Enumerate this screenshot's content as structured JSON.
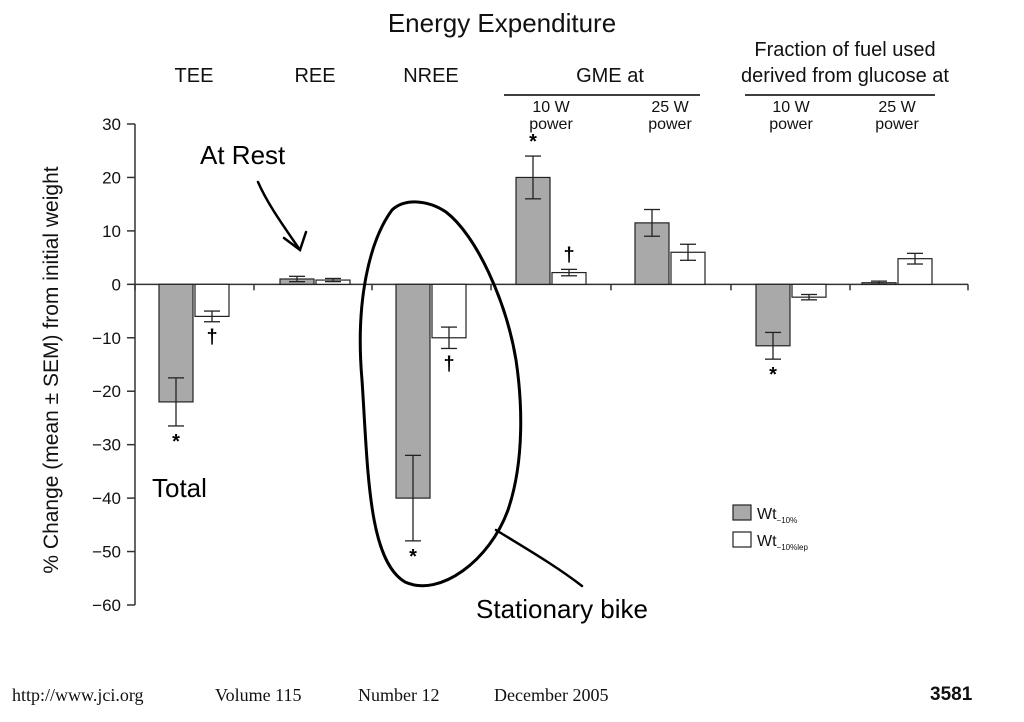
{
  "chart_data": {
    "type": "bar",
    "title": "Energy Expenditure",
    "ylabel": "% Change (mean ± SEM) from initial weight",
    "ylim": [
      -60,
      30
    ],
    "yticks": [
      30,
      20,
      10,
      0,
      -10,
      -20,
      -30,
      -40,
      -50,
      -60
    ],
    "categories": [
      "TEE",
      "REE",
      "NREE",
      "10 W power",
      "25 W power",
      "10 W power",
      "25 W power"
    ],
    "groups": [
      {
        "label": "GME at",
        "members": [
          3,
          4
        ]
      },
      {
        "label": "Fraction of fuel used derived from glucose at",
        "lines": [
          "Fraction of fuel used",
          "derived from glucose at"
        ],
        "members": [
          5,
          6
        ]
      }
    ],
    "category_labels": [
      {
        "lines": [
          "TEE"
        ]
      },
      {
        "lines": [
          "REE"
        ]
      },
      {
        "lines": [
          "NREE"
        ]
      },
      {
        "lines": [
          "10 W",
          "power"
        ]
      },
      {
        "lines": [
          "25 W",
          "power"
        ]
      },
      {
        "lines": [
          "10 W",
          "power"
        ]
      },
      {
        "lines": [
          "25 W",
          "power"
        ]
      }
    ],
    "series": [
      {
        "name": "Wt−10%",
        "main": "Wt",
        "sub": "−10%",
        "fill": "#a9a9a9",
        "values": [
          -22,
          1,
          -40,
          20,
          11.5,
          -11.5,
          0.3
        ],
        "errors": [
          4.5,
          0.5,
          8,
          4,
          2.5,
          2.5,
          0.3
        ],
        "marks": [
          "*",
          "",
          "*",
          "*",
          "",
          "*",
          ""
        ]
      },
      {
        "name": "Wt−10%lep",
        "main": "Wt",
        "sub": "−10%lep",
        "fill": "#ffffff",
        "values": [
          -6,
          0.8,
          -10,
          2.2,
          6,
          -2.4,
          4.8
        ],
        "errors": [
          1,
          0.3,
          2,
          0.6,
          1.5,
          0.5,
          1
        ],
        "marks": [
          "†",
          "",
          "†",
          "†",
          "",
          "",
          ""
        ]
      }
    ],
    "grid": false,
    "legend_position": "bottom-right",
    "annotations": {
      "at_rest": "At Rest",
      "total": "Total",
      "stationary_bike": "Stationary bike"
    }
  },
  "footer": {
    "url": "http://www.jci.org",
    "volume": "Volume 115",
    "number": "Number 12",
    "date": "December 2005",
    "page": "3581"
  }
}
